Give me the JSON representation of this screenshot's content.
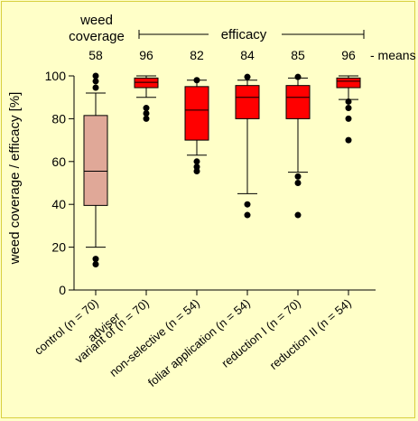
{
  "chart_data": {
    "type": "box",
    "ylabel": "weed coverage / efficacy [%]",
    "ylim": [
      0,
      100
    ],
    "yticks": [
      0,
      20,
      40,
      60,
      80,
      100
    ],
    "header": {
      "group_left": "weed\ncoverage",
      "group_right": "efficacy",
      "means_label": "- means"
    },
    "categories": [
      {
        "label": "control (n = 70)",
        "mean": "58",
        "color": "#e0a898",
        "whisker_low": 20,
        "q1": 39.5,
        "median": 55.5,
        "q3": 81.5,
        "whisker_high": 92,
        "outliers": [
          12,
          14.5,
          94.5,
          97.5,
          100
        ]
      },
      {
        "label": "variant of\nadviser",
        "mean": "96",
        "color": "#ff0000",
        "whisker_low": 90,
        "q1": 94.5,
        "median": 97,
        "q3": 99,
        "whisker_high": 100,
        "outliers": [
          80,
          82.5,
          85
        ]
      },
      {
        "label": "non-selective (n = 54)",
        "mean": "82",
        "color": "#ff0000",
        "whisker_low": 63,
        "q1": 70,
        "median": 84,
        "q3": 95,
        "whisker_high": 98,
        "outliers": [
          55.5,
          57.5,
          60,
          98
        ]
      },
      {
        "label": "foliar application (n = 54)",
        "mean": "84",
        "color": "#ff0000",
        "whisker_low": 45,
        "q1": 80,
        "median": 90,
        "q3": 95.5,
        "whisker_high": 98,
        "outliers": [
          35,
          40,
          99.5
        ]
      },
      {
        "label": "reduction I (n = 70)",
        "mean": "85",
        "color": "#ff0000",
        "whisker_low": 55,
        "q1": 80,
        "median": 90,
        "q3": 95.5,
        "whisker_high": 99,
        "outliers": [
          35,
          50,
          53,
          99.5
        ]
      },
      {
        "label": "reduction II (n = 54)",
        "mean": "96",
        "color": "#ff0000",
        "whisker_low": 89,
        "q1": 94.5,
        "median": 97.5,
        "q3": 99,
        "whisker_high": 100,
        "outliers": [
          70,
          80,
          85,
          88
        ]
      }
    ],
    "extra_label": "(n = 70)"
  }
}
